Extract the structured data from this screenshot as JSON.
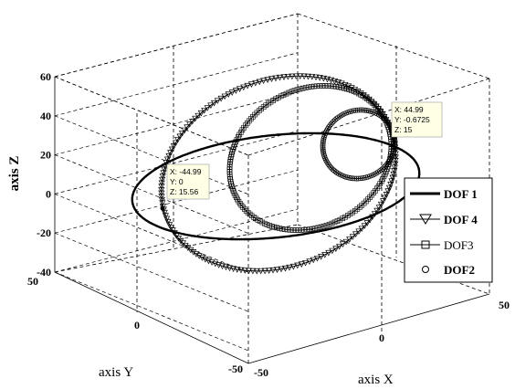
{
  "chart_data": {
    "type": "line3d",
    "title": "",
    "xlabel": "axis X",
    "ylabel": "axis Y",
    "zlabel": "axis Z",
    "xlim": [
      -50,
      50
    ],
    "ylim": [
      -50,
      50
    ],
    "zlim": [
      -40,
      60
    ],
    "x_ticks": [
      "-50",
      "0",
      "50"
    ],
    "y_ticks": [
      "-50",
      "0",
      "50"
    ],
    "z_ticks": [
      "-40",
      "-20",
      "0",
      "20",
      "40",
      "60"
    ],
    "grid": true,
    "legend_position": "right",
    "series": [
      {
        "name": "DOF 1",
        "marker": "none",
        "curve": "ellipse",
        "cx": 0,
        "cy": 0,
        "cz": 10,
        "ax": 45,
        "ay": 45,
        "tilt": 0.15
      },
      {
        "name": "DOF 4",
        "marker": "triangle-down",
        "curve": "ellipse",
        "cx": 0,
        "cy": 0,
        "cz": 15,
        "ax": 45,
        "ay": 0,
        "az": 40
      },
      {
        "name": "DOF3",
        "marker": "square",
        "curve": "ellipse",
        "cx": 10,
        "cy": 0,
        "cz": 20,
        "ax": 30,
        "ay": 0,
        "az": 35
      },
      {
        "name": "DOF2",
        "marker": "circle",
        "curve": "ellipse",
        "cx": 35,
        "cy": 0,
        "cz": 22,
        "ax": 12,
        "ay": 0,
        "az": 15
      }
    ],
    "datatips": [
      {
        "lines": [
          "X: 44.99",
          "Y: -0.6725",
          "Z: 15"
        ]
      },
      {
        "lines": [
          "X: -44.99",
          "Y: 0",
          "Z: 15.56"
        ]
      }
    ]
  }
}
